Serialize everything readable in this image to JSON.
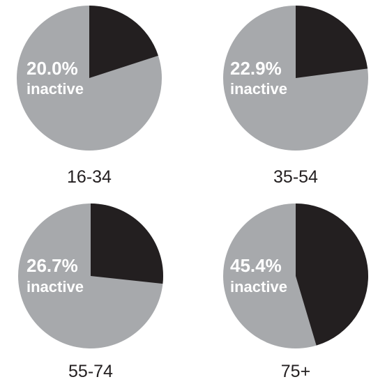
{
  "chart_data": [
    {
      "type": "pie",
      "category": "16-34",
      "slices": [
        {
          "label": "inactive",
          "value": 20.0
        },
        {
          "label": "",
          "value": 80.0
        }
      ],
      "annotation": {
        "percent": "20.0%",
        "text": "inactive"
      }
    },
    {
      "type": "pie",
      "category": "35-54",
      "slices": [
        {
          "label": "inactive",
          "value": 22.9
        },
        {
          "label": "",
          "value": 77.1
        }
      ],
      "annotation": {
        "percent": "22.9%",
        "text": "inactive"
      }
    },
    {
      "type": "pie",
      "category": "55-74",
      "slices": [
        {
          "label": "inactive",
          "value": 26.7
        },
        {
          "label": "",
          "value": 73.3
        }
      ],
      "annotation": {
        "percent": "26.7%",
        "text": "inactive"
      }
    },
    {
      "type": "pie",
      "category": "75+",
      "slices": [
        {
          "label": "inactive",
          "value": 45.4
        },
        {
          "label": "",
          "value": 54.6
        }
      ],
      "annotation": {
        "percent": "45.4%",
        "text": "inactive"
      }
    }
  ],
  "colors": {
    "inactive": "#231f20",
    "active": "#a7a9ac",
    "label_on_pie": "#ffffff",
    "category_label": "#231f20"
  }
}
